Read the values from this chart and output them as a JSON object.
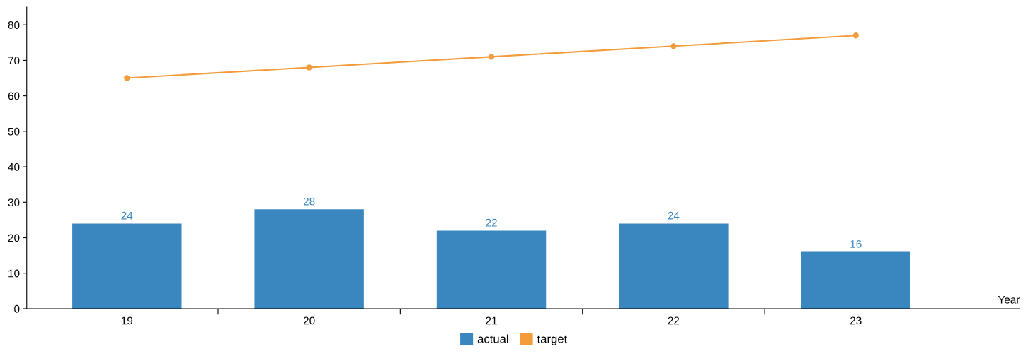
{
  "chart_data": {
    "type": "bar",
    "xlabel": "Year",
    "categories": [
      "19",
      "20",
      "21",
      "22",
      "23"
    ],
    "series": [
      {
        "name": "actual",
        "color": "#3a87c0",
        "values": [
          24,
          28,
          22,
          24,
          16
        ],
        "value_labels": [
          "24",
          "28",
          "22",
          "24",
          "16"
        ]
      },
      {
        "name": "target",
        "type": "line",
        "color": "#f39c3c",
        "values": [
          65,
          68,
          71,
          74,
          77
        ],
        "marker": "circle",
        "line_style": "solid"
      }
    ],
    "ylim": [
      0,
      85
    ],
    "yticks": [
      0,
      10,
      20,
      30,
      40,
      50,
      60,
      70,
      80
    ],
    "grid": false,
    "legend": "bottom"
  }
}
